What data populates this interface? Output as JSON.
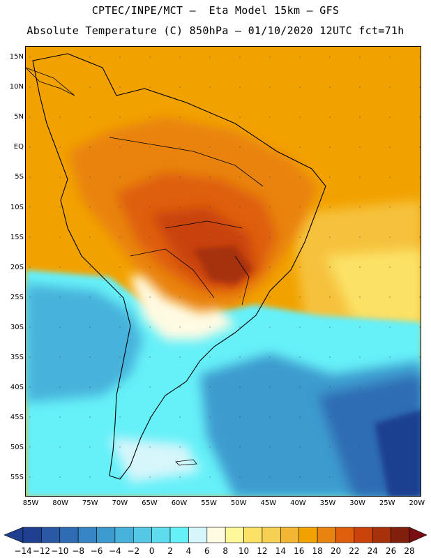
{
  "header": {
    "title_line1": "CPTEC/INPE/MCT –  Eta Model 15km – GFS",
    "title_line2": "Absolute Temperature (C) 850hPa – 01/10/2020 12UTC fct=71h"
  },
  "axes": {
    "lat_labels": [
      "15N",
      "10N",
      "5N",
      "EQ",
      "5S",
      "10S",
      "15S",
      "20S",
      "25S",
      "30S",
      "35S",
      "40S",
      "45S",
      "50S",
      "55S"
    ],
    "lon_labels": [
      "85W",
      "80W",
      "75W",
      "70W",
      "65W",
      "60W",
      "55W",
      "50W",
      "45W",
      "40W",
      "35W",
      "30W",
      "25W",
      "20W"
    ]
  },
  "legend": {
    "labels": [
      "-14",
      "-12",
      "-10",
      "-8",
      "-6",
      "-4",
      "-2",
      "0",
      "2",
      "4",
      "6",
      "8",
      "10",
      "12",
      "14",
      "16",
      "18",
      "20",
      "22",
      "24",
      "26",
      "28"
    ],
    "colors": [
      "#1f3f90",
      "#2a58a4",
      "#2f6cb3",
      "#3785c4",
      "#3c9bce",
      "#46b2db",
      "#55c8e6",
      "#5fdbee",
      "#66f0f8",
      "#d6f6fb",
      "#fffbe3",
      "#fff89a",
      "#fbe266",
      "#f6d052",
      "#f3b634",
      "#f2a200",
      "#e98310",
      "#de5e0c",
      "#c9430a",
      "#a6310a",
      "#7f1f0c"
    ],
    "low_color": "#1f3f90",
    "high_color": "#7a0e12"
  }
}
